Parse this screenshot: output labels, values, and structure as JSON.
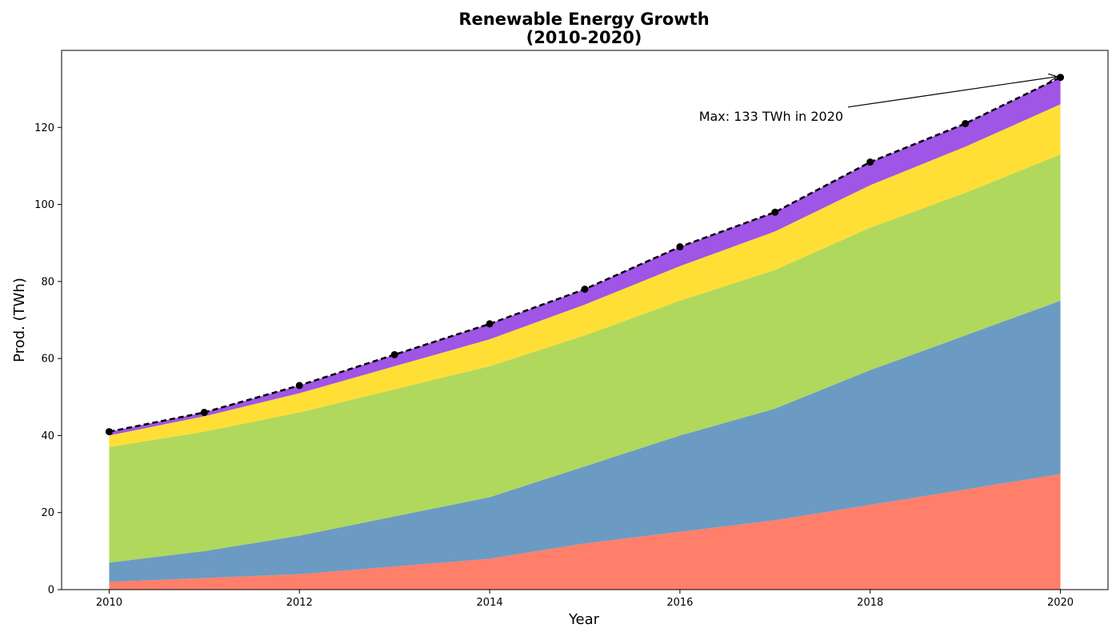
{
  "chart_data": {
    "type": "area",
    "title": "Renewable Energy Growth",
    "subtitle": "(2010-2020)",
    "xlabel": "Year",
    "ylabel": "Prod. (TWh)",
    "x": [
      2010,
      2011,
      2012,
      2013,
      2014,
      2015,
      2016,
      2017,
      2018,
      2019,
      2020
    ],
    "xlim": [
      2009.5,
      2020.5
    ],
    "ylim": [
      0,
      140
    ],
    "xticks": [
      2010,
      2012,
      2014,
      2016,
      2018,
      2020
    ],
    "yticks": [
      0,
      20,
      40,
      60,
      80,
      100,
      120
    ],
    "xtick_labels": [
      "2010",
      "2012",
      "2014",
      "2016",
      "2018",
      "2020"
    ],
    "ytick_labels": [
      "0",
      "20",
      "40",
      "60",
      "80",
      "100",
      "120"
    ],
    "grid": false,
    "stacked": true,
    "series": [
      {
        "values": [
          2,
          3,
          4,
          6,
          8,
          12,
          15,
          18,
          22,
          26,
          30
        ],
        "color": "#FF7F6A"
      },
      {
        "values": [
          5,
          7,
          10,
          13,
          16,
          20,
          25,
          29,
          35,
          40,
          45
        ],
        "color": "#6B9BC3"
      },
      {
        "values": [
          30,
          31,
          32,
          33,
          34,
          34,
          35,
          36,
          37,
          37,
          38
        ],
        "color": "#B0D85D"
      },
      {
        "values": [
          3,
          4,
          5,
          6,
          7,
          8,
          9,
          10,
          11,
          12,
          13
        ],
        "color": "#FFDF36"
      },
      {
        "values": [
          1,
          1,
          2,
          3,
          4,
          4,
          5,
          5,
          6,
          6,
          7
        ],
        "color": "#9F55E5"
      }
    ],
    "total_line": {
      "values": [
        41,
        46,
        53,
        61,
        69,
        78,
        89,
        98,
        111,
        121,
        133
      ],
      "color": "#000000",
      "style": "dashed",
      "marker": "circle"
    },
    "annotation": {
      "text": "Max: 133 TWh in 2020",
      "point": {
        "x": 2020,
        "y": 133
      },
      "text_anchor": {
        "x": 2016.2,
        "y": 123
      }
    }
  }
}
